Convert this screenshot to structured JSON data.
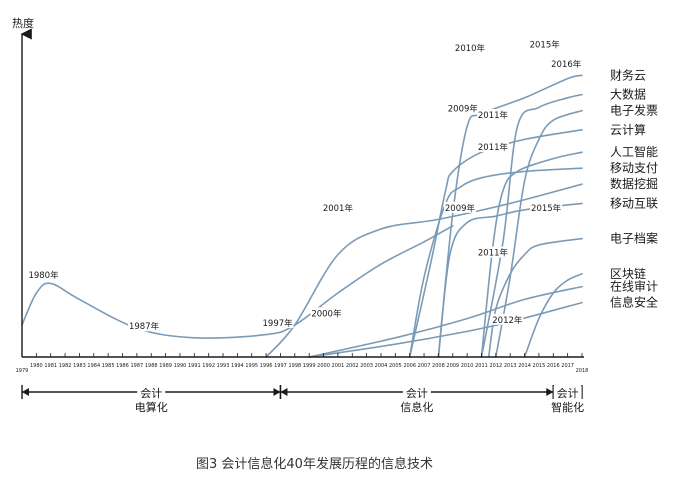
{
  "chart_data": {
    "type": "line",
    "title": "",
    "ylabel": "热度",
    "xlabel": "",
    "x_ticks": [
      "1979",
      "1980",
      "1981",
      "1982",
      "1983",
      "1984",
      "1985",
      "1986",
      "1987",
      "1988",
      "1989",
      "1990",
      "1991",
      "1992",
      "1993",
      "1994",
      "1995",
      "1996",
      "1997",
      "1998",
      "1999",
      "2000",
      "2001",
      "2002",
      "2003",
      "2004",
      "2005",
      "2006",
      "2007",
      "2008",
      "2009",
      "2010",
      "2011",
      "2012",
      "2013",
      "2014",
      "2015",
      "2016",
      "2017",
      "2018"
    ],
    "xlim": [
      1979,
      2018
    ],
    "ylim": [
      0,
      100
    ],
    "series": [
      {
        "name": "财务云",
        "points": [
          [
            2008,
            0
          ],
          [
            2009,
            45
          ],
          [
            2010,
            72
          ],
          [
            2011,
            76
          ],
          [
            2014,
            81
          ],
          [
            2017,
            87
          ],
          [
            2018,
            88
          ]
        ]
      },
      {
        "name": "大数据",
        "points": [
          [
            2011,
            0
          ],
          [
            2012.5,
            36
          ],
          [
            2013.5,
            72
          ],
          [
            2015,
            78
          ],
          [
            2017,
            81
          ],
          [
            2018,
            82
          ]
        ]
      },
      {
        "name": "电子发票",
        "points": [
          [
            2012,
            0
          ],
          [
            2013,
            25
          ],
          [
            2014,
            55
          ],
          [
            2015,
            68
          ],
          [
            2016,
            74
          ],
          [
            2018,
            77
          ]
        ]
      },
      {
        "name": "云计算",
        "points": [
          [
            2006,
            0
          ],
          [
            2007.5,
            30
          ],
          [
            2008.5,
            52
          ],
          [
            2009,
            58
          ],
          [
            2011,
            64
          ],
          [
            2014,
            68
          ],
          [
            2018,
            71
          ]
        ]
      },
      {
        "name": "人工智能",
        "points": [
          [
            2011,
            0
          ],
          [
            2011.8,
            35
          ],
          [
            2012.5,
            52
          ],
          [
            2013.5,
            58
          ],
          [
            2016,
            62
          ],
          [
            2018,
            64
          ]
        ]
      },
      {
        "name": "移动支付",
        "points": [
          [
            2006,
            0
          ],
          [
            2007,
            25
          ],
          [
            2008.5,
            48
          ],
          [
            2009.5,
            53
          ],
          [
            2011,
            56
          ],
          [
            2014,
            58
          ],
          [
            2018,
            59
          ]
        ]
      },
      {
        "name": "数据挖掘",
        "points": [
          [
            1996,
            0
          ],
          [
            1998,
            10
          ],
          [
            2001,
            32
          ],
          [
            2004,
            40
          ],
          [
            2008,
            43
          ],
          [
            2013,
            48
          ],
          [
            2018,
            54
          ]
        ]
      },
      {
        "name": "移动互联",
        "points": [
          [
            2008,
            0
          ],
          [
            2008.8,
            32
          ],
          [
            2010,
            42
          ],
          [
            2012,
            44
          ],
          [
            2014,
            46
          ],
          [
            2018,
            48
          ]
        ]
      },
      {
        "name": "电子档案",
        "points": [
          [
            2011.5,
            0
          ],
          [
            2012,
            15
          ],
          [
            2013,
            26
          ],
          [
            2014,
            32
          ],
          [
            2015,
            35
          ],
          [
            2018,
            37
          ]
        ]
      },
      {
        "name": "区块链",
        "points": [
          [
            2014,
            0
          ],
          [
            2015,
            12
          ],
          [
            2016,
            20
          ],
          [
            2017,
            24
          ],
          [
            2018,
            26
          ]
        ]
      },
      {
        "name": "在线审计",
        "points": [
          [
            1999,
            0
          ],
          [
            2005,
            6
          ],
          [
            2010,
            12
          ],
          [
            2014,
            18
          ],
          [
            2018,
            22
          ]
        ]
      },
      {
        "name": "信息安全",
        "points": [
          [
            1999,
            0
          ],
          [
            2005,
            4
          ],
          [
            2010,
            8
          ],
          [
            2013,
            11
          ],
          [
            2018,
            17
          ]
        ]
      },
      {
        "name": "会计电算化",
        "points": [
          [
            1979,
            10
          ],
          [
            1980,
            20
          ],
          [
            1981,
            23
          ],
          [
            1983,
            18
          ],
          [
            1987,
            9
          ],
          [
            1991,
            6
          ],
          [
            1996,
            7
          ],
          [
            1998,
            10
          ],
          [
            2001,
            20
          ],
          [
            2004,
            29
          ],
          [
            2007,
            36
          ],
          [
            2009,
            41
          ]
        ]
      }
    ],
    "annotations": [
      {
        "text": "1980年",
        "year": 1980.5,
        "level": 25
      },
      {
        "text": "1987年",
        "year": 1987.5,
        "level": 9
      },
      {
        "text": "1997年",
        "year": 1996.8,
        "level": 10
      },
      {
        "text": "2000年",
        "year": 2000.2,
        "level": 13
      },
      {
        "text": "2001年",
        "year": 2001,
        "level": 46
      },
      {
        "text": "2009年",
        "year": 2009.7,
        "level": 77
      },
      {
        "text": "2009年",
        "year": 2009.5,
        "level": 46
      },
      {
        "text": "2010年",
        "year": 2010.2,
        "level": 96
      },
      {
        "text": "2011年",
        "year": 2011.8,
        "level": 75
      },
      {
        "text": "2011年",
        "year": 2011.8,
        "level": 65
      },
      {
        "text": "2011年",
        "year": 2011.8,
        "level": 32
      },
      {
        "text": "2012年",
        "year": 2012.8,
        "level": 11
      },
      {
        "text": "2015年",
        "year": 2015.4,
        "level": 97
      },
      {
        "text": "2015年",
        "year": 2015.5,
        "level": 46
      },
      {
        "text": "2016年",
        "year": 2016.9,
        "level": 91
      }
    ],
    "phases": [
      {
        "label": "会计\n电算化",
        "start": 1979,
        "end": 1997
      },
      {
        "label": "会计\n信息化",
        "start": 1997,
        "end": 2016
      },
      {
        "label": "会计\n智能化",
        "start": 2016,
        "end": 2018
      }
    ],
    "grid": false,
    "legend": "right"
  },
  "caption": "图3 会计信息化40年发展历程的信息技术"
}
